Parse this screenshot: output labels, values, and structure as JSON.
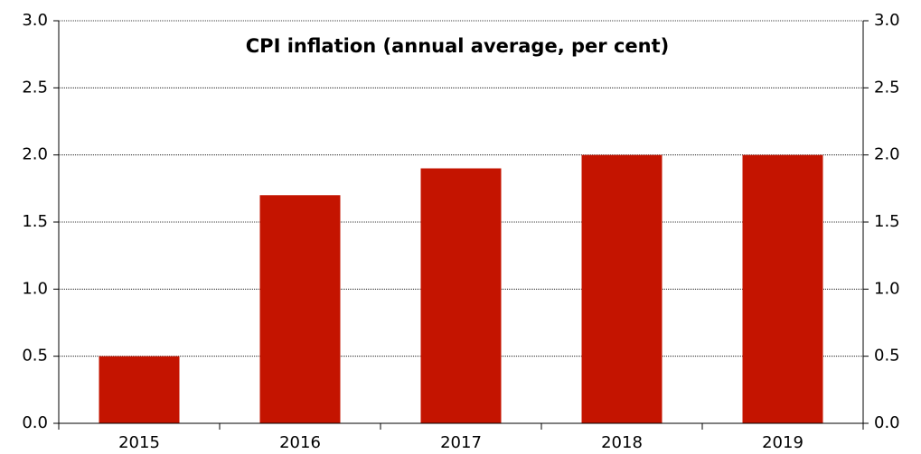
{
  "chart_data": {
    "type": "bar",
    "title": "CPI inflation (annual average, per cent)",
    "categories": [
      "2015",
      "2016",
      "2017",
      "2018",
      "2019"
    ],
    "values": [
      0.5,
      1.7,
      1.9,
      2.0,
      2.0
    ],
    "color": "#c41400",
    "ylim": [
      0,
      3
    ],
    "yticks": [
      {
        "value": 0,
        "label": "0.0"
      },
      0.5,
      {
        "value": 1,
        "label": "1.0"
      },
      1.5,
      {
        "value": 2,
        "label": "2.0"
      },
      2.5,
      {
        "value": 3,
        "label": "3.0"
      }
    ],
    "y2lim": [
      0,
      3
    ],
    "y2ticks": [
      {
        "value": 0,
        "label": "0.0"
      },
      0.5,
      {
        "value": 1,
        "label": "1.0"
      },
      1.5,
      {
        "value": 2,
        "label": "2.0"
      },
      2.5,
      {
        "value": 3,
        "label": "3.0"
      }
    ],
    "grid": true
  }
}
